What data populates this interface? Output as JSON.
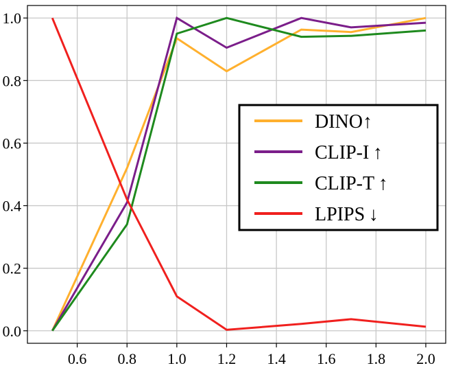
{
  "chart_data": {
    "type": "line",
    "title": "",
    "xlabel": "",
    "ylabel": "",
    "xlim": [
      0.4,
      2.08
    ],
    "ylim": [
      -0.04,
      1.04
    ],
    "xticks": [
      0.6,
      0.8,
      1.0,
      1.2,
      1.4,
      1.6,
      1.8,
      2.0
    ],
    "xtick_labels": [
      "0.6",
      "0.8",
      "1.0",
      "1.2",
      "1.4",
      "1.6",
      "1.8",
      "2.0"
    ],
    "yticks": [
      0.0,
      0.2,
      0.4,
      0.6,
      0.8,
      1.0
    ],
    "ytick_labels": [
      "0.0",
      "0.2",
      "0.4",
      "0.6",
      "0.8",
      "1.0"
    ],
    "grid": true,
    "legend_position": "right",
    "series": [
      {
        "name": "DINO↑",
        "color": "#FFB02E",
        "x": [
          0.5,
          0.8,
          1.0,
          1.2,
          1.5,
          1.7,
          2.0
        ],
        "y": [
          0.0,
          0.52,
          0.935,
          0.83,
          0.963,
          0.955,
          1.0
        ]
      },
      {
        "name": "CLIP-I ↑",
        "color": "#7B1E8A",
        "x": [
          0.5,
          0.8,
          1.0,
          1.2,
          1.5,
          1.7,
          2.0
        ],
        "y": [
          0.0,
          0.41,
          1.0,
          0.905,
          1.0,
          0.97,
          0.985
        ]
      },
      {
        "name": "CLIP-T ↑",
        "color": "#1E8A1E",
        "x": [
          0.5,
          0.8,
          1.0,
          1.2,
          1.5,
          1.7,
          2.0
        ],
        "y": [
          0.0,
          0.34,
          0.95,
          1.0,
          0.94,
          0.943,
          0.96
        ]
      },
      {
        "name": "LPIPS ↓",
        "color": "#F0201E",
        "x": [
          0.5,
          0.8,
          1.0,
          1.2,
          1.5,
          1.7,
          2.0
        ],
        "y": [
          1.0,
          0.42,
          0.11,
          0.003,
          0.022,
          0.037,
          0.013
        ]
      }
    ]
  }
}
